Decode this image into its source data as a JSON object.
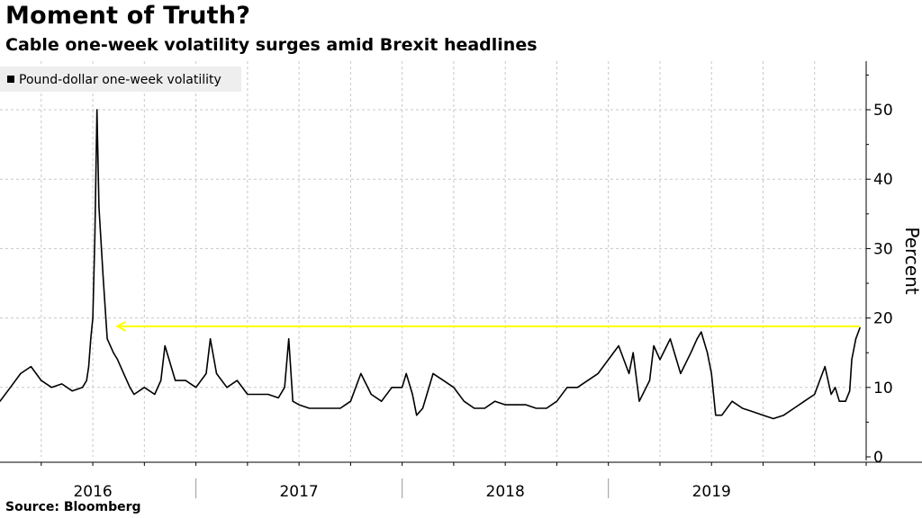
{
  "header": {
    "title": "Moment of Truth?",
    "subtitle": "Cable one-week volatility surges amid Brexit headlines"
  },
  "footer": {
    "source": "Source: Bloomberg"
  },
  "colors": {
    "series": "#000000",
    "reference_line": "#ffff00",
    "grid": "#c8c8c8",
    "legend_bg": "#eeeeee"
  },
  "chart_data": {
    "type": "line",
    "title": "Cable one-week volatility surges amid Brexit headlines",
    "xlabel": "",
    "ylabel": "Percent",
    "ylim": [
      0,
      57
    ],
    "yticks": [
      0,
      10,
      20,
      30,
      40,
      50
    ],
    "xlim": [
      2015.55,
      2019.75
    ],
    "x_period_labels": [
      {
        "label": "2016",
        "center": 2016.0
      },
      {
        "label": "2017",
        "center": 2017.0
      },
      {
        "label": "2018",
        "center": 2018.0
      },
      {
        "label": "2019",
        "center": 2019.0
      }
    ],
    "x_year_boundaries": [
      2016.5,
      2017.5,
      2018.5
    ],
    "legend": [
      "Pound-dollar one-week volatility"
    ],
    "annotations": [
      {
        "type": "arrow",
        "from_x": 2019.72,
        "to_x": 2016.12,
        "y": 18.8,
        "color": "yellow"
      }
    ],
    "series": [
      {
        "name": "Pound-dollar one-week volatility",
        "x": [
          2015.55,
          2015.6,
          2015.65,
          2015.7,
          2015.75,
          2015.8,
          2015.85,
          2015.9,
          2015.95,
          2015.97,
          2015.98,
          2015.99,
          2016.0,
          2016.01,
          2016.02,
          2016.03,
          2016.05,
          2016.07,
          2016.1,
          2016.12,
          2016.15,
          2016.18,
          2016.2,
          2016.25,
          2016.3,
          2016.33,
          2016.35,
          2016.38,
          2016.4,
          2016.45,
          2016.5,
          2016.55,
          2016.57,
          2016.6,
          2016.65,
          2016.7,
          2016.75,
          2016.8,
          2016.85,
          2016.9,
          2016.93,
          2016.95,
          2016.97,
          2017.0,
          2017.05,
          2017.1,
          2017.15,
          2017.2,
          2017.25,
          2017.3,
          2017.35,
          2017.4,
          2017.45,
          2017.5,
          2017.52,
          2017.55,
          2017.57,
          2017.6,
          2017.65,
          2017.7,
          2017.75,
          2017.8,
          2017.85,
          2017.9,
          2017.95,
          2018.0,
          2018.05,
          2018.1,
          2018.15,
          2018.2,
          2018.25,
          2018.3,
          2018.35,
          2018.4,
          2018.45,
          2018.5,
          2018.55,
          2018.6,
          2018.62,
          2018.65,
          2018.7,
          2018.72,
          2018.75,
          2018.8,
          2018.85,
          2018.9,
          2018.93,
          2018.95,
          2018.98,
          2019.0,
          2019.02,
          2019.05,
          2019.1,
          2019.15,
          2019.2,
          2019.25,
          2019.3,
          2019.35,
          2019.4,
          2019.45,
          2019.5,
          2019.55,
          2019.58,
          2019.6,
          2019.62,
          2019.65,
          2019.67,
          2019.68,
          2019.7,
          2019.72
        ],
        "values": [
          8,
          10,
          12,
          13,
          11,
          10,
          10.5,
          9.5,
          10,
          11,
          13,
          17,
          20,
          32,
          50,
          36,
          26,
          17,
          15,
          14,
          12,
          10,
          9,
          10,
          9,
          11,
          16,
          13,
          11,
          11,
          10,
          12,
          17,
          12,
          10,
          11,
          9,
          9,
          9,
          8.5,
          10,
          17,
          8,
          7.5,
          7,
          7,
          7,
          7,
          8,
          12,
          9,
          8,
          10,
          10,
          12,
          9,
          6,
          7,
          12,
          11,
          10,
          8,
          7,
          7,
          8,
          7.5,
          7.5,
          7.5,
          7,
          7,
          8,
          10,
          10,
          11,
          12,
          14,
          16,
          12,
          15,
          8,
          11,
          16,
          14,
          17,
          12,
          15,
          17,
          18,
          15,
          12,
          6,
          6,
          8,
          7,
          6.5,
          6,
          5.5,
          6,
          7,
          8,
          9,
          13,
          9,
          10,
          8,
          8,
          9.5,
          14,
          17,
          18.6
        ]
      }
    ]
  }
}
